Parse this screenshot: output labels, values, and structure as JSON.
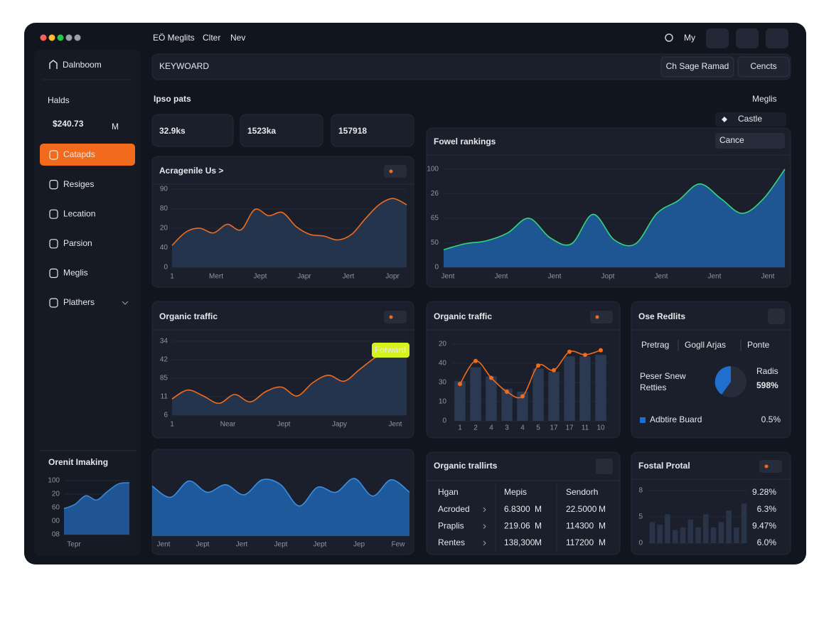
{
  "topbar": {
    "tabs": [
      "EÖ Meglits",
      "Clter",
      "Nev"
    ],
    "user": "My"
  },
  "sidebar": {
    "brand": "Dalnboom",
    "balance_label": "Halds",
    "balance": "$240.73",
    "balance_unit": "M",
    "nav": [
      "Catapds",
      "Resiges",
      "Lecation",
      "Parsion",
      "Meglis",
      "Plathers"
    ]
  },
  "search": {
    "placeholder": "KEYWOARD",
    "buttons": [
      "Ch Sage Ramad",
      "Cencts"
    ]
  },
  "heading": "Ipso pats",
  "heading_menu": "Meglis",
  "filter": "Castle",
  "stats": [
    "32.9ks",
    "1523ka",
    "157918"
  ],
  "charts": [
    {
      "type": "area",
      "title": "Acragenile Us >",
      "ylabels": [
        "90",
        "80",
        "20",
        "40",
        "0"
      ],
      "xlabels": [
        "1",
        "Mert",
        "Jept",
        "Japr",
        "Jert",
        "Jopr"
      ],
      "ylim": [
        0,
        100
      ],
      "line_color": "#f26b1d",
      "fill": "#263650",
      "values": [
        28,
        45,
        50,
        44,
        55,
        48,
        74,
        66,
        70,
        52,
        42,
        40,
        35,
        42,
        62,
        80,
        88,
        80
      ]
    },
    {
      "type": "area",
      "title": "Fowel rankings",
      "dropdown": "Cance",
      "ylabels": [
        "100",
        "26",
        "65",
        "50",
        "0"
      ],
      "xlabels": [
        "Jent",
        "Jent",
        "Jent",
        "Jopt",
        "Jent",
        "Jent",
        "Jent"
      ],
      "ylim": [
        0,
        100
      ],
      "line_color": "#37d67a",
      "fill": "#1f5c9e",
      "values": [
        18,
        24,
        27,
        35,
        50,
        30,
        24,
        54,
        28,
        24,
        55,
        68,
        85,
        70,
        55,
        70,
        100
      ]
    },
    {
      "type": "area",
      "title": "Organic traffic",
      "tooltip": "Forward",
      "ylabels": [
        "34",
        "42",
        "85",
        "11",
        "6"
      ],
      "xlabels": [
        "1",
        "Near",
        "Jept",
        "Japy",
        "Jent"
      ],
      "ylim": [
        0,
        100
      ],
      "line_color": "#f26b1d",
      "fill": "#263650",
      "values": [
        22,
        34,
        26,
        16,
        28,
        18,
        32,
        38,
        26,
        44,
        54,
        46,
        62,
        78,
        88,
        92
      ]
    },
    {
      "type": "bar",
      "title": "Organic traffic",
      "ylabels": [
        "20",
        "40",
        "30",
        "10",
        "0"
      ],
      "xlabels": [
        "1",
        "2",
        "4",
        "3",
        "4",
        "5",
        "17",
        "17",
        "11",
        "10"
      ],
      "ylim": [
        0,
        100
      ],
      "line_color": "#f26b1d",
      "fill": "#2b3a52",
      "values": [
        52,
        70,
        58,
        42,
        38,
        68,
        64,
        84,
        84,
        86
      ],
      "line_values": [
        48,
        78,
        56,
        38,
        32,
        72,
        66,
        90,
        86,
        92
      ]
    },
    {
      "type": "area",
      "title": "Orenit Imaking",
      "ylabels": [
        "100",
        "20",
        "60",
        "00",
        "08"
      ],
      "xlabels": [
        "Tepr"
      ],
      "ylim": [
        0,
        100
      ],
      "line_color": "#3a86d4",
      "fill": "#1f5c9e",
      "values": [
        48,
        56,
        72,
        64,
        80,
        94,
        96
      ]
    },
    {
      "type": "area",
      "xlabels": [
        "Jent",
        "Jept",
        "Jert",
        "Jept",
        "Jept",
        "Jep",
        "Few"
      ],
      "ylim": [
        0,
        100
      ],
      "line_color": "#3d8ee0",
      "fill": "#1f5fa8",
      "values": [
        80,
        62,
        88,
        70,
        82,
        66,
        90,
        82,
        48,
        78,
        70,
        92,
        64,
        90,
        70
      ]
    },
    {
      "type": "bar",
      "title": "Fostal Protal",
      "ylabels": [
        "8",
        "5",
        "0"
      ],
      "ylim": [
        0,
        100
      ],
      "fill": "#2a3448",
      "values": [
        40,
        35,
        55,
        25,
        30,
        45,
        30,
        55,
        30,
        40,
        62,
        30,
        75
      ],
      "side_labels": [
        "9.28%",
        "6.3%",
        "9.47%",
        "6.0%"
      ],
      "side_color": "#4aa3ff"
    }
  ],
  "results": {
    "title": "Ose Redlits",
    "tabs": [
      "Pretrag",
      "Gogll Arjas",
      "Ponte"
    ],
    "caption": [
      "Peser Snew",
      "Retties"
    ],
    "pie_label": "Radis",
    "pie_value": "598%",
    "legend": "Adbtire Buard",
    "legend_value": "0.5%"
  },
  "table": {
    "title": "Organic trallirts",
    "header": [
      "Hgan",
      "Mepis",
      "Sendorh"
    ],
    "rows": [
      [
        "Acroded",
        "6.8300",
        "M",
        "22.5000",
        "M"
      ],
      [
        "Praplis",
        "219.06",
        "M",
        "114300",
        "M"
      ],
      [
        "Rentes",
        "138,300",
        "M",
        "117200",
        "M"
      ]
    ]
  }
}
